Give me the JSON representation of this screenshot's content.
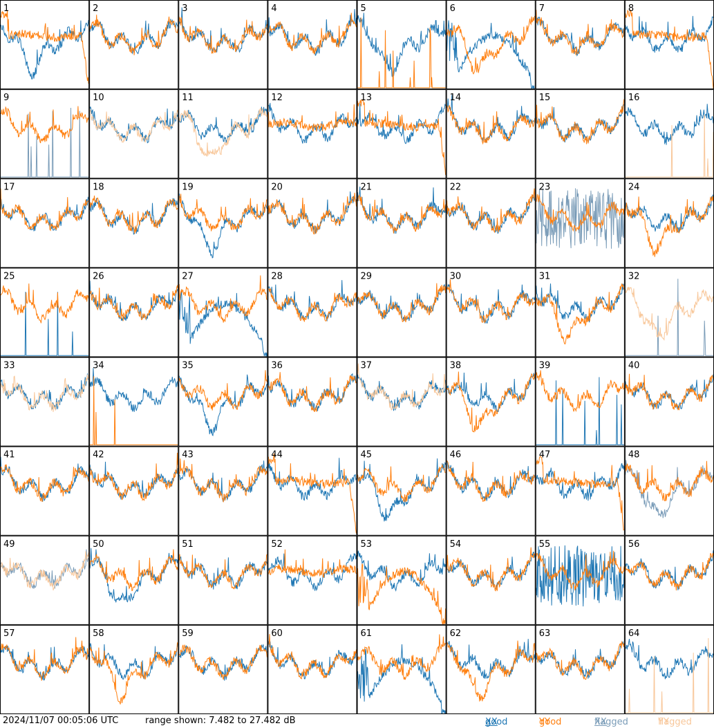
{
  "footer": {
    "timestamp": "2024/11/07 00:05:06 UTC",
    "range": "range shown: 7.482 to 27.482 dB",
    "legend": {
      "good_label": "good",
      "flagged_label": "flagged",
      "xx": "XX",
      "yy": "YY"
    }
  },
  "colors": {
    "good_xx": "#1f77b4",
    "good_yy": "#ff7f0e",
    "flagged_xx": "#7a9cb8",
    "flagged_yy": "#f8c79a"
  },
  "chart_data": {
    "type": "line",
    "layout": "small-multiples 8x8",
    "range_db": [
      7.482,
      27.482
    ],
    "series_names": [
      "good XX",
      "good YY",
      "flagged XX",
      "flagged YY"
    ],
    "panels": [
      {
        "id": "1",
        "xx": "good",
        "yy": "good",
        "xx_shape": "dip",
        "yy_shape": "dropend"
      },
      {
        "id": "2",
        "xx": "good",
        "yy": "good",
        "xx_shape": "normal",
        "yy_shape": "normal"
      },
      {
        "id": "3",
        "xx": "good",
        "yy": "good",
        "xx_shape": "normal",
        "yy_shape": "normal"
      },
      {
        "id": "4",
        "xx": "good",
        "yy": "good",
        "xx_shape": "normal",
        "yy_shape": "normal"
      },
      {
        "id": "5",
        "xx": "good",
        "yy": "good",
        "xx_shape": "dip",
        "yy_shape": "spikes"
      },
      {
        "id": "6",
        "xx": "good",
        "yy": "good",
        "xx_shape": "bell",
        "yy_shape": "dip"
      },
      {
        "id": "7",
        "xx": "good",
        "yy": "good",
        "xx_shape": "normal",
        "yy_shape": "normal"
      },
      {
        "id": "8",
        "xx": "good",
        "yy": "good",
        "xx_shape": "normal",
        "yy_shape": "dropend"
      },
      {
        "id": "9",
        "xx": "flagged",
        "yy": "good",
        "xx_shape": "spikes",
        "yy_shape": "normal"
      },
      {
        "id": "10",
        "xx": "good",
        "yy": "flagged",
        "xx_shape": "normal",
        "yy_shape": "normal"
      },
      {
        "id": "11",
        "xx": "good",
        "yy": "flagged",
        "xx_shape": "normal",
        "yy_shape": "dip"
      },
      {
        "id": "12",
        "xx": "good",
        "yy": "good",
        "xx_shape": "normal",
        "yy_shape": "flat"
      },
      {
        "id": "13",
        "xx": "good",
        "yy": "good",
        "xx_shape": "normal",
        "yy_shape": "dropend"
      },
      {
        "id": "14",
        "xx": "good",
        "yy": "good",
        "xx_shape": "normal",
        "yy_shape": "normal"
      },
      {
        "id": "15",
        "xx": "good",
        "yy": "good",
        "xx_shape": "normal",
        "yy_shape": "normal"
      },
      {
        "id": "16",
        "xx": "good",
        "yy": "flagged",
        "xx_shape": "normal",
        "yy_shape": "spikes"
      },
      {
        "id": "17",
        "xx": "good",
        "yy": "good",
        "xx_shape": "normal",
        "yy_shape": "normal"
      },
      {
        "id": "18",
        "xx": "good",
        "yy": "good",
        "xx_shape": "normal",
        "yy_shape": "normal"
      },
      {
        "id": "19",
        "xx": "good",
        "yy": "good",
        "xx_shape": "dip",
        "yy_shape": "normal"
      },
      {
        "id": "20",
        "xx": "good",
        "yy": "good",
        "xx_shape": "normal",
        "yy_shape": "normal"
      },
      {
        "id": "21",
        "xx": "good",
        "yy": "good",
        "xx_shape": "normal",
        "yy_shape": "normal"
      },
      {
        "id": "22",
        "xx": "good",
        "yy": "good",
        "xx_shape": "normal",
        "yy_shape": "normal"
      },
      {
        "id": "23",
        "xx": "flagged",
        "yy": "good",
        "xx_shape": "noisy",
        "yy_shape": "normal"
      },
      {
        "id": "24",
        "xx": "good",
        "yy": "good",
        "xx_shape": "normal",
        "yy_shape": "dip"
      },
      {
        "id": "25",
        "xx": "good",
        "yy": "good",
        "xx_shape": "spikes",
        "yy_shape": "normal"
      },
      {
        "id": "26",
        "xx": "good",
        "yy": "good",
        "xx_shape": "normal",
        "yy_shape": "normal"
      },
      {
        "id": "27",
        "xx": "good",
        "yy": "good",
        "xx_shape": "bell",
        "yy_shape": "normal"
      },
      {
        "id": "28",
        "xx": "good",
        "yy": "good",
        "xx_shape": "normal",
        "yy_shape": "normal"
      },
      {
        "id": "29",
        "xx": "good",
        "yy": "good",
        "xx_shape": "normal",
        "yy_shape": "normal"
      },
      {
        "id": "30",
        "xx": "good",
        "yy": "good",
        "xx_shape": "normal",
        "yy_shape": "normal"
      },
      {
        "id": "31",
        "xx": "good",
        "yy": "good",
        "xx_shape": "normal",
        "yy_shape": "dip"
      },
      {
        "id": "32",
        "xx": "flagged",
        "yy": "flagged",
        "xx_shape": "spikes",
        "yy_shape": "dip"
      },
      {
        "id": "33",
        "xx": "good",
        "yy": "flagged",
        "xx_shape": "normal",
        "yy_shape": "normal"
      },
      {
        "id": "34",
        "xx": "good",
        "yy": "good",
        "xx_shape": "normal",
        "yy_shape": "spikes"
      },
      {
        "id": "35",
        "xx": "good",
        "yy": "good",
        "xx_shape": "dip",
        "yy_shape": "normal"
      },
      {
        "id": "36",
        "xx": "good",
        "yy": "good",
        "xx_shape": "normal",
        "yy_shape": "normal"
      },
      {
        "id": "37",
        "xx": "good",
        "yy": "flagged",
        "xx_shape": "normal",
        "yy_shape": "normal"
      },
      {
        "id": "38",
        "xx": "good",
        "yy": "good",
        "xx_shape": "normal",
        "yy_shape": "dip"
      },
      {
        "id": "39",
        "xx": "good",
        "yy": "good",
        "xx_shape": "spikes",
        "yy_shape": "normal"
      },
      {
        "id": "40",
        "xx": "good",
        "yy": "good",
        "xx_shape": "normal",
        "yy_shape": "normal"
      },
      {
        "id": "41",
        "xx": "good",
        "yy": "good",
        "xx_shape": "normal",
        "yy_shape": "normal"
      },
      {
        "id": "42",
        "xx": "good",
        "yy": "good",
        "xx_shape": "normal",
        "yy_shape": "normal"
      },
      {
        "id": "43",
        "xx": "good",
        "yy": "good",
        "xx_shape": "normal",
        "yy_shape": "normal"
      },
      {
        "id": "44",
        "xx": "good",
        "yy": "good",
        "xx_shape": "normal",
        "yy_shape": "dropend"
      },
      {
        "id": "45",
        "xx": "good",
        "yy": "good",
        "xx_shape": "dip",
        "yy_shape": "normal"
      },
      {
        "id": "46",
        "xx": "good",
        "yy": "good",
        "xx_shape": "normal",
        "yy_shape": "normal"
      },
      {
        "id": "47",
        "xx": "good",
        "yy": "good",
        "xx_shape": "normal",
        "yy_shape": "dropend"
      },
      {
        "id": "48",
        "xx": "flagged",
        "yy": "good",
        "xx_shape": "dip",
        "yy_shape": "normal"
      },
      {
        "id": "49",
        "xx": "flagged",
        "yy": "flagged",
        "xx_shape": "normal",
        "yy_shape": "normal"
      },
      {
        "id": "50",
        "xx": "good",
        "yy": "good",
        "xx_shape": "dip",
        "yy_shape": "normal"
      },
      {
        "id": "51",
        "xx": "good",
        "yy": "good",
        "xx_shape": "normal",
        "yy_shape": "normal"
      },
      {
        "id": "52",
        "xx": "good",
        "yy": "good",
        "xx_shape": "normal",
        "yy_shape": "flat"
      },
      {
        "id": "53",
        "xx": "good",
        "yy": "good",
        "xx_shape": "normal",
        "yy_shape": "bell"
      },
      {
        "id": "54",
        "xx": "good",
        "yy": "good",
        "xx_shape": "normal",
        "yy_shape": "normal"
      },
      {
        "id": "55",
        "xx": "good",
        "yy": "good",
        "xx_shape": "noisy",
        "yy_shape": "normal"
      },
      {
        "id": "56",
        "xx": "good",
        "yy": "good",
        "xx_shape": "normal",
        "yy_shape": "normal"
      },
      {
        "id": "57",
        "xx": "good",
        "yy": "good",
        "xx_shape": "normal",
        "yy_shape": "normal"
      },
      {
        "id": "58",
        "xx": "good",
        "yy": "good",
        "xx_shape": "normal",
        "yy_shape": "dip"
      },
      {
        "id": "59",
        "xx": "good",
        "yy": "good",
        "xx_shape": "normal",
        "yy_shape": "normal"
      },
      {
        "id": "60",
        "xx": "good",
        "yy": "good",
        "xx_shape": "normal",
        "yy_shape": "normal"
      },
      {
        "id": "61",
        "xx": "good",
        "yy": "good",
        "xx_shape": "bell",
        "yy_shape": "normal"
      },
      {
        "id": "62",
        "xx": "good",
        "yy": "good",
        "xx_shape": "normal",
        "yy_shape": "dip"
      },
      {
        "id": "63",
        "xx": "good",
        "yy": "good",
        "xx_shape": "normal",
        "yy_shape": "normal"
      },
      {
        "id": "64",
        "xx": "good",
        "yy": "flagged",
        "xx_shape": "normal",
        "yy_shape": "spikes"
      }
    ]
  }
}
